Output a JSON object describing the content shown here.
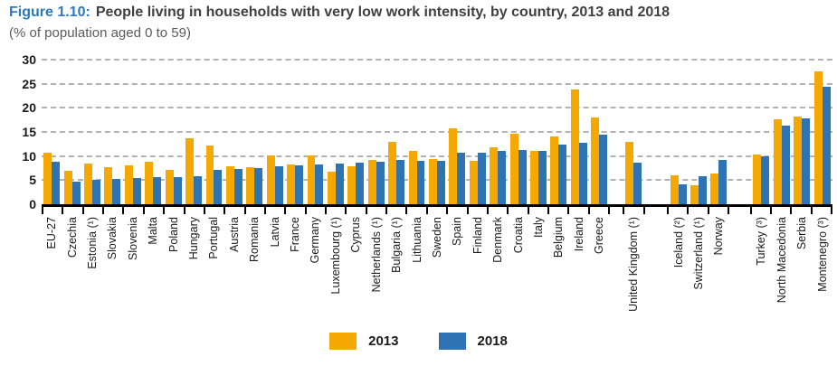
{
  "title": {
    "label": "Figure 1.10:",
    "text": "People living in households with very low work intensity, by country, 2013 and 2018",
    "subtitle": "(% of population aged 0 to 59)"
  },
  "legend": [
    {
      "label": "2013",
      "color": "#f5a800"
    },
    {
      "label": "2018",
      "color": "#2e74b5"
    }
  ],
  "colors": {
    "figure_label_blue": "#2e78bd",
    "bar_2013": "#f5a800",
    "bar_2018": "#2e74b5",
    "gridline": "#b3b3b3",
    "axis": "#000000"
  },
  "chart_data": {
    "type": "bar",
    "title": "People living in households with very low work intensity, by country, 2013 and 2018",
    "xlabel": "",
    "ylabel": "% of population aged 0 to 59",
    "ylim": [
      0,
      30
    ],
    "yticks": [
      0,
      5,
      10,
      15,
      20,
      25,
      30
    ],
    "grid": "horizontal-dashed",
    "legend_position": "bottom-center",
    "series_names": [
      "2013",
      "2018"
    ],
    "groups": [
      {
        "label": "EU-27",
        "2013": 10.7,
        "2018": 8.9
      },
      {
        "label": "Czechia",
        "2013": 6.9,
        "2018": 4.7
      },
      {
        "label": "Estonia (¹)",
        "2013": 8.4,
        "2018": 5.1
      },
      {
        "label": "Slovakia",
        "2013": 7.6,
        "2018": 5.2
      },
      {
        "label": "Slovenia",
        "2013": 8.0,
        "2018": 5.4
      },
      {
        "label": "Malta",
        "2013": 8.9,
        "2018": 5.6
      },
      {
        "label": "Poland",
        "2013": 7.2,
        "2018": 5.7
      },
      {
        "label": "Hungary",
        "2013": 13.7,
        "2018": 5.8
      },
      {
        "label": "Portugal",
        "2013": 12.2,
        "2018": 7.2
      },
      {
        "label": "Austria",
        "2013": 7.8,
        "2018": 7.4
      },
      {
        "label": "Romania",
        "2013": 7.7,
        "2018": 7.5
      },
      {
        "label": "Latvia",
        "2013": 10.1,
        "2018": 7.8
      },
      {
        "label": "France",
        "2013": 8.3,
        "2018": 8.0
      },
      {
        "label": "Germany",
        "2013": 10.1,
        "2018": 8.3
      },
      {
        "label": "Luxembourg (¹)",
        "2013": 6.7,
        "2018": 8.5
      },
      {
        "label": "Cyprus",
        "2013": 7.9,
        "2018": 8.7
      },
      {
        "label": "Netherlands (¹)",
        "2013": 9.2,
        "2018": 8.8
      },
      {
        "label": "Bulgaria (¹)",
        "2013": 12.9,
        "2018": 9.1
      },
      {
        "label": "Lithuania",
        "2013": 11.0,
        "2018": 9.0
      },
      {
        "label": "Sweden",
        "2013": 9.3,
        "2018": 9.0
      },
      {
        "label": "Spain",
        "2013": 15.7,
        "2018": 10.7
      },
      {
        "label": "Finland",
        "2013": 9.0,
        "2018": 10.6
      },
      {
        "label": "Denmark",
        "2013": 11.9,
        "2018": 11.0
      },
      {
        "label": "Croatia",
        "2013": 14.6,
        "2018": 11.2
      },
      {
        "label": "Italy",
        "2013": 11.1,
        "2018": 11.1
      },
      {
        "label": "Belgium",
        "2013": 14.0,
        "2018": 12.4
      },
      {
        "label": "Ireland",
        "2013": 23.9,
        "2018": 12.8
      },
      {
        "label": "Greece",
        "2013": 18.0,
        "2018": 14.5
      },
      {
        "spacer": true,
        "w": 0.7
      },
      {
        "label": "United Kingdom (¹)",
        "2013": 13.0,
        "2018": 8.6
      },
      {
        "spacer": true,
        "w": 1.2
      },
      {
        "label": "Iceland (²)",
        "2013": 6.0,
        "2018": 4.2
      },
      {
        "label": "Switzerland (¹)",
        "2013": 3.9,
        "2018": 5.9
      },
      {
        "label": "Norway",
        "2013": 6.3,
        "2018": 9.1
      },
      {
        "spacer": true,
        "w": 1.1
      },
      {
        "label": "Turkey (³)",
        "2013": 10.3,
        "2018": 9.9
      },
      {
        "label": "North Macedonia",
        "2013": 17.6,
        "2018": 16.3
      },
      {
        "label": "Serbia",
        "2013": 18.1,
        "2018": 17.9
      },
      {
        "label": "Montenegro (³)",
        "2013": 27.5,
        "2018": 24.4
      }
    ]
  }
}
